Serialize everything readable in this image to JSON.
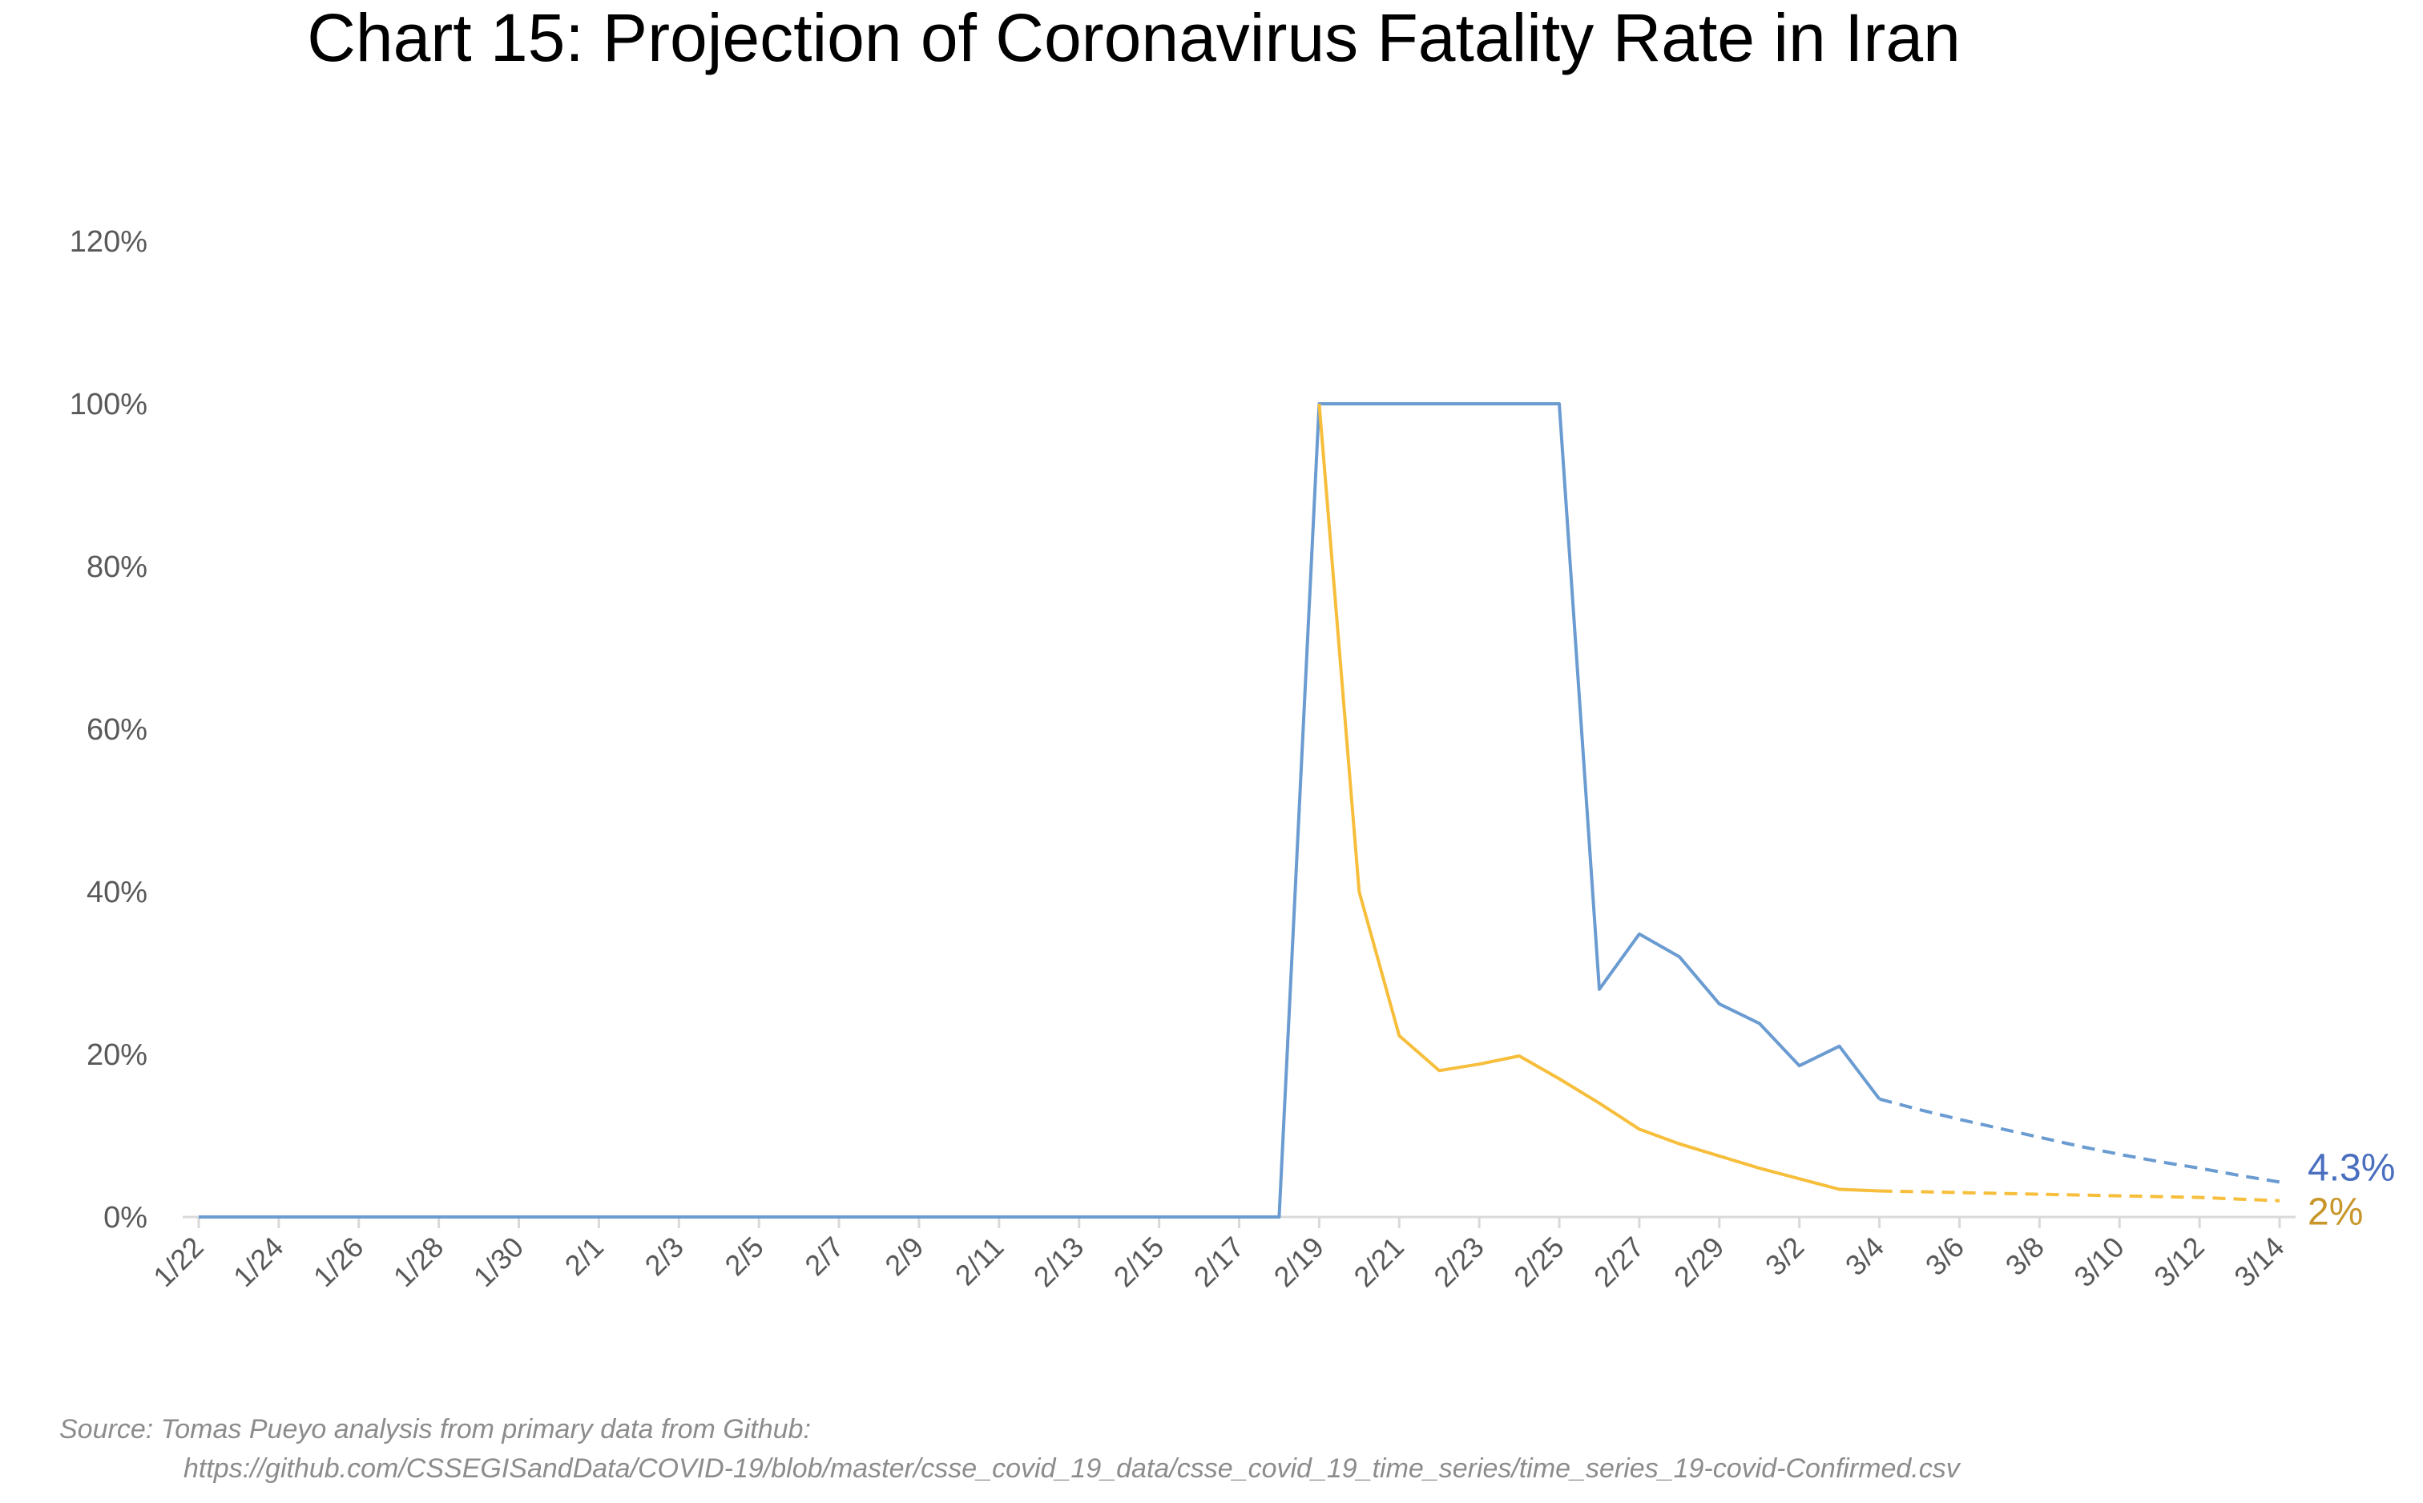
{
  "chart_data": {
    "type": "line",
    "title": "Chart 15: Projection of Coronavirus Fatality Rate in Iran",
    "xlabel": "",
    "ylabel": "",
    "ylim": [
      0,
      120
    ],
    "y_ticks": [
      "0%",
      "20%",
      "40%",
      "60%",
      "80%",
      "100%",
      "120%"
    ],
    "y_tick_values": [
      0,
      20,
      40,
      60,
      80,
      100,
      120
    ],
    "grid": false,
    "legend": "none",
    "x": [
      "1/22",
      "1/23",
      "1/24",
      "1/25",
      "1/26",
      "1/27",
      "1/28",
      "1/29",
      "1/30",
      "1/31",
      "2/1",
      "2/2",
      "2/3",
      "2/4",
      "2/5",
      "2/6",
      "2/7",
      "2/8",
      "2/9",
      "2/10",
      "2/11",
      "2/12",
      "2/13",
      "2/14",
      "2/15",
      "2/16",
      "2/17",
      "2/18",
      "2/19",
      "2/20",
      "2/21",
      "2/22",
      "2/23",
      "2/24",
      "2/25",
      "2/26",
      "2/27",
      "2/28",
      "2/29",
      "3/1",
      "3/2",
      "3/3",
      "3/4",
      "3/5",
      "3/6",
      "3/7",
      "3/8",
      "3/9",
      "3/10",
      "3/11",
      "3/12",
      "3/13",
      "3/14"
    ],
    "x_tick_labels": [
      "1/22",
      "1/24",
      "1/26",
      "1/28",
      "1/30",
      "2/1",
      "2/3",
      "2/5",
      "2/7",
      "2/9",
      "2/11",
      "2/13",
      "2/15",
      "2/17",
      "2/19",
      "2/21",
      "2/23",
      "2/25",
      "2/27",
      "2/29",
      "3/2",
      "3/4",
      "3/6",
      "3/8",
      "3/10",
      "3/12",
      "3/14"
    ],
    "projection_starts": "3/4",
    "series": [
      {
        "color": "#6a9bd1",
        "end_label": "4.3%",
        "end_label_color": "#4a6fbf",
        "values": [
          0,
          0,
          0,
          0,
          0,
          0,
          0,
          0,
          0,
          0,
          0,
          0,
          0,
          0,
          0,
          0,
          0,
          0,
          0,
          0,
          0,
          0,
          0,
          0,
          0,
          0,
          0,
          0,
          100,
          100,
          100,
          100,
          100,
          100,
          100,
          28,
          34.8,
          32,
          26.2,
          23.8,
          18.6,
          21,
          14.5,
          13.2,
          12,
          10.9,
          9.8,
          8.7,
          7.7,
          6.8,
          6,
          5.1,
          4.3
        ]
      },
      {
        "color": "#f6be3b",
        "end_label": "2%",
        "end_label_color": "#c8962a",
        "values": [
          null,
          null,
          null,
          null,
          null,
          null,
          null,
          null,
          null,
          null,
          null,
          null,
          null,
          null,
          null,
          null,
          null,
          null,
          null,
          null,
          null,
          null,
          null,
          null,
          null,
          null,
          null,
          null,
          100,
          40,
          22.3,
          18,
          18.8,
          19.8,
          17,
          14,
          10.8,
          9,
          7.5,
          6,
          4.7,
          3.4,
          3.2,
          3.1,
          3.0,
          2.9,
          2.8,
          2.7,
          2.6,
          2.5,
          2.4,
          2.2,
          2.0
        ]
      }
    ],
    "source_line1": "Source: Tomas Pueyo analysis from primary data from Github:",
    "source_line2": "https://github.com/CSSEGISandData/COVID-19/blob/master/csse_covid_19_data/csse_covid_19_time_series/time_series_19-covid-Confirmed.csv"
  }
}
